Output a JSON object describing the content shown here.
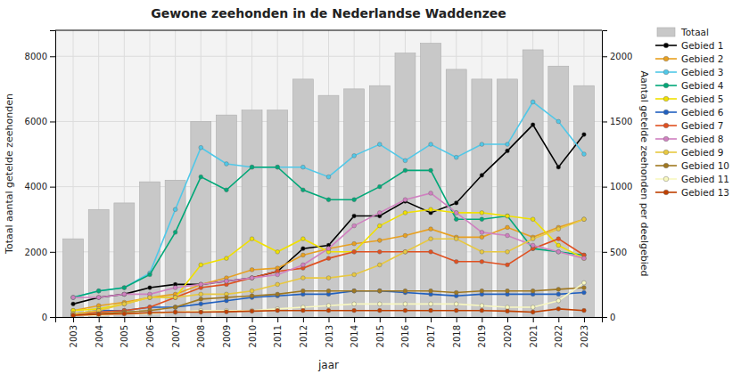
{
  "chart_data": {
    "type": "bar",
    "title": "Gewone zeehonden in de Nederlandse Waddenzee",
    "xlabel": "jaar",
    "ylabel": "Totaal aantal getelde zeehonden",
    "y2label": "Aantal getelde zeehonden per deelgebied",
    "x": [
      2003,
      2004,
      2005,
      2006,
      2007,
      2008,
      2009,
      2010,
      2011,
      2012,
      2013,
      2014,
      2015,
      2016,
      2017,
      2018,
      2019,
      2020,
      2021,
      2022,
      2023
    ],
    "xlim": [
      2002.3,
      2023.7
    ],
    "xticks": [
      2003,
      2004,
      2005,
      2006,
      2007,
      2008,
      2009,
      2010,
      2011,
      2012,
      2013,
      2014,
      2015,
      2016,
      2017,
      2018,
      2019,
      2020,
      2021,
      2022,
      2023
    ],
    "ylim": [
      0,
      8800
    ],
    "yticks": [
      0,
      2000,
      4000,
      6000,
      8000
    ],
    "y2lim": [
      0,
      2200
    ],
    "y2ticks": [
      0,
      500,
      1000,
      1500,
      2000
    ],
    "grid": true,
    "legend": "right",
    "series": [
      {
        "name": "Totaal",
        "type": "bar",
        "color": "#C8C8C8",
        "values": [
          2400,
          3300,
          3500,
          4150,
          4200,
          6000,
          6200,
          6350,
          6350,
          7300,
          6800,
          7000,
          7100,
          8100,
          8400,
          7600,
          7300,
          7300,
          8200,
          7700,
          7100
        ]
      },
      {
        "name": "Gebied 1",
        "type": "line",
        "marker": "circle",
        "color": "#000000",
        "values": [
          400,
          600,
          700,
          900,
          1000,
          1000,
          1100,
          1200,
          1400,
          2100,
          2200,
          3100,
          3100,
          3550,
          3200,
          3500,
          4350,
          5100,
          5900,
          4600,
          5600
        ]
      },
      {
        "name": "Gebied 2",
        "type": "line",
        "marker": "circle",
        "color": "#E8A020",
        "values": [
          200,
          350,
          450,
          600,
          700,
          1000,
          1200,
          1450,
          1500,
          1900,
          2100,
          2250,
          2350,
          2500,
          2700,
          2450,
          2450,
          2750,
          2450,
          2750,
          3000
        ]
      },
      {
        "name": "Gebied 3",
        "type": "line",
        "marker": "circle",
        "color": "#50C8E8",
        "values": [
          600,
          800,
          900,
          1350,
          3300,
          5200,
          4700,
          4600,
          4600,
          4600,
          4300,
          4950,
          5300,
          4800,
          5300,
          4900,
          5300,
          5300,
          6600,
          6000,
          5000
        ]
      },
      {
        "name": "Gebied 4",
        "type": "line",
        "marker": "circle",
        "color": "#00A878",
        "values": [
          600,
          800,
          900,
          1300,
          2600,
          4300,
          3900,
          4600,
          4600,
          3900,
          3600,
          3600,
          4000,
          4500,
          4500,
          3000,
          3000,
          3100,
          2100,
          2000,
          1900
        ]
      },
      {
        "name": "Gebied 5",
        "type": "line",
        "marker": "circle",
        "color": "#F0E000",
        "values": [
          200,
          250,
          400,
          600,
          600,
          1600,
          1800,
          2400,
          2000,
          2400,
          2000,
          2000,
          2800,
          3200,
          3300,
          3200,
          3200,
          3100,
          3000,
          2200,
          1800
        ]
      },
      {
        "name": "Gebied 6",
        "type": "line",
        "marker": "circle",
        "color": "#2060C0",
        "values": [
          100,
          200,
          200,
          300,
          300,
          400,
          500,
          600,
          650,
          700,
          700,
          800,
          800,
          750,
          700,
          650,
          700,
          700,
          700,
          700,
          750
        ]
      },
      {
        "name": "Gebied 7",
        "type": "line",
        "marker": "circle",
        "color": "#E05020",
        "values": [
          100,
          150,
          200,
          300,
          600,
          900,
          1000,
          1200,
          1400,
          1500,
          1800,
          2000,
          2000,
          2000,
          2000,
          1700,
          1700,
          1600,
          2100,
          2400,
          1900
        ]
      },
      {
        "name": "Gebied 8",
        "type": "line",
        "marker": "circle",
        "color": "#D080C0",
        "values": [
          600,
          600,
          700,
          700,
          900,
          1000,
          1100,
          1200,
          1300,
          1600,
          2100,
          2800,
          3200,
          3600,
          3800,
          3200,
          2600,
          2500,
          2200,
          2000,
          1800
        ]
      },
      {
        "name": "Gebied 9",
        "type": "line",
        "marker": "circle",
        "color": "#E8C840",
        "values": [
          100,
          200,
          400,
          600,
          600,
          700,
          700,
          800,
          1000,
          1200,
          1200,
          1300,
          1600,
          2000,
          2400,
          2400,
          2000,
          2000,
          2400,
          2700,
          3000
        ]
      },
      {
        "name": "Gebied 10",
        "type": "line",
        "marker": "circle",
        "color": "#A07820",
        "values": [
          50,
          100,
          150,
          200,
          300,
          550,
          600,
          650,
          700,
          800,
          800,
          800,
          800,
          800,
          800,
          750,
          800,
          800,
          800,
          850,
          900
        ]
      },
      {
        "name": "Gebied 11",
        "type": "line",
        "marker": "circle",
        "color": "#F8F8C0",
        "values": [
          50,
          50,
          100,
          100,
          150,
          200,
          200,
          200,
          250,
          300,
          350,
          400,
          400,
          400,
          400,
          400,
          350,
          300,
          300,
          500,
          1050
        ]
      },
      {
        "name": "Gebied 13",
        "type": "line",
        "marker": "circle",
        "color": "#C04000",
        "values": [
          50,
          80,
          100,
          130,
          150,
          150,
          160,
          180,
          200,
          200,
          200,
          200,
          200,
          200,
          200,
          200,
          200,
          180,
          150,
          250,
          200
        ]
      }
    ]
  }
}
